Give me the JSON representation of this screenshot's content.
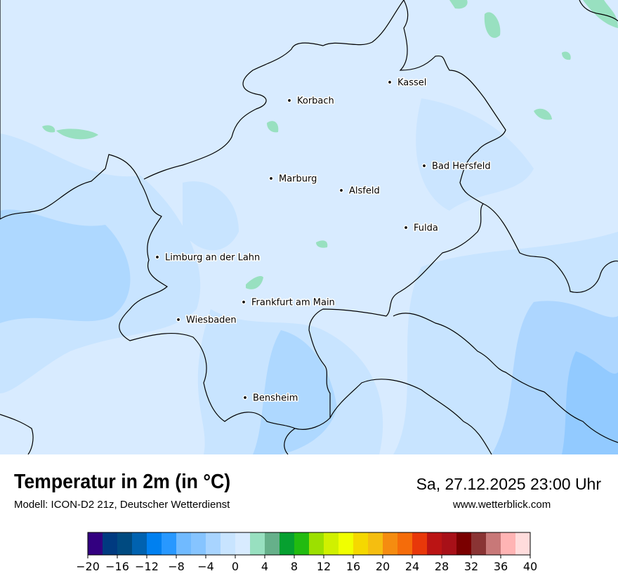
{
  "header": {
    "title": "Temperatur in 2m (in °C)",
    "subtitle": "Modell: ICON-D2 21z, Deutscher Wetterdienst",
    "datetime": "Sa, 27.12.2025 23:00 Uhr",
    "website": "www.wetterblick.com"
  },
  "map": {
    "background_color": "#d8ebff",
    "cities": [
      {
        "name": "Kassel"
      },
      {
        "name": "Korbach"
      },
      {
        "name": "Bad Hersfeld"
      },
      {
        "name": "Marburg"
      },
      {
        "name": "Alsfeld"
      },
      {
        "name": "Fulda"
      },
      {
        "name": "Limburg an der Lahn"
      },
      {
        "name": "Frankfurt am Main"
      },
      {
        "name": "Wiesbaden"
      },
      {
        "name": "Bensheim"
      }
    ]
  },
  "colorbar": {
    "min": -20,
    "max": 40,
    "step": 2,
    "tick_labels": [
      "−20",
      "−16",
      "−12",
      "−8",
      "−4",
      "0",
      "4",
      "8",
      "12",
      "16",
      "20",
      "24",
      "28",
      "32",
      "36",
      "40"
    ],
    "colors": [
      "#330080",
      "#003a80",
      "#004a80",
      "#0062b0",
      "#0080f0",
      "#2898ff",
      "#70baff",
      "#86c4ff",
      "#a8d4ff",
      "#c8e4ff",
      "#d8ebff",
      "#98e0c0",
      "#66b08a",
      "#06a030",
      "#22bb10",
      "#9ce000",
      "#d0f000",
      "#f0ff00",
      "#f5d800",
      "#f5be10",
      "#f58c10",
      "#f56c0a",
      "#e8380a",
      "#bb1414",
      "#a81018",
      "#7a0000",
      "#8a3434",
      "#c87878",
      "#ffb4b4",
      "#ffdcdc"
    ]
  }
}
